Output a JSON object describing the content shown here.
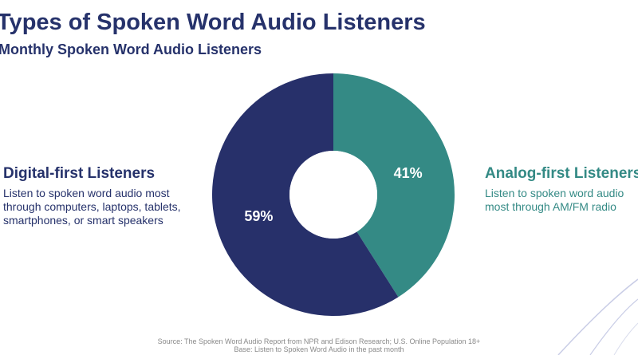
{
  "title": "Types of Spoken Word Audio Listeners",
  "subtitle": "Monthly Spoken Word Audio Listeners",
  "legend": {
    "digital": {
      "heading": "Digital-first Listeners",
      "description": "Listen to spoken word audio most through computers, laptops, tablets, smartphones, or smart speakers"
    },
    "analog": {
      "heading": "Analog-first Listeners",
      "description": "Listen to spoken word audio most through AM/FM radio"
    }
  },
  "source": {
    "line1": "Source: The Spoken Word Audio Report from NPR and Edison Research; U.S. Online Population 18+",
    "line2": "Base: Listen to Spoken Word Audio in the past month"
  },
  "chart_data": {
    "type": "pie",
    "variant": "donut",
    "slices": [
      {
        "label": "Analog-first Listeners",
        "value": 41,
        "display": "41%",
        "color": "#348a85"
      },
      {
        "label": "Digital-first Listeners",
        "value": 59,
        "display": "59%",
        "color": "#27306a"
      }
    ],
    "start": "12 o'clock",
    "direction": "clockwise"
  },
  "colors": {
    "navy": "#27306a",
    "teal": "#348a85",
    "source_gray": "#8a8a8a"
  }
}
